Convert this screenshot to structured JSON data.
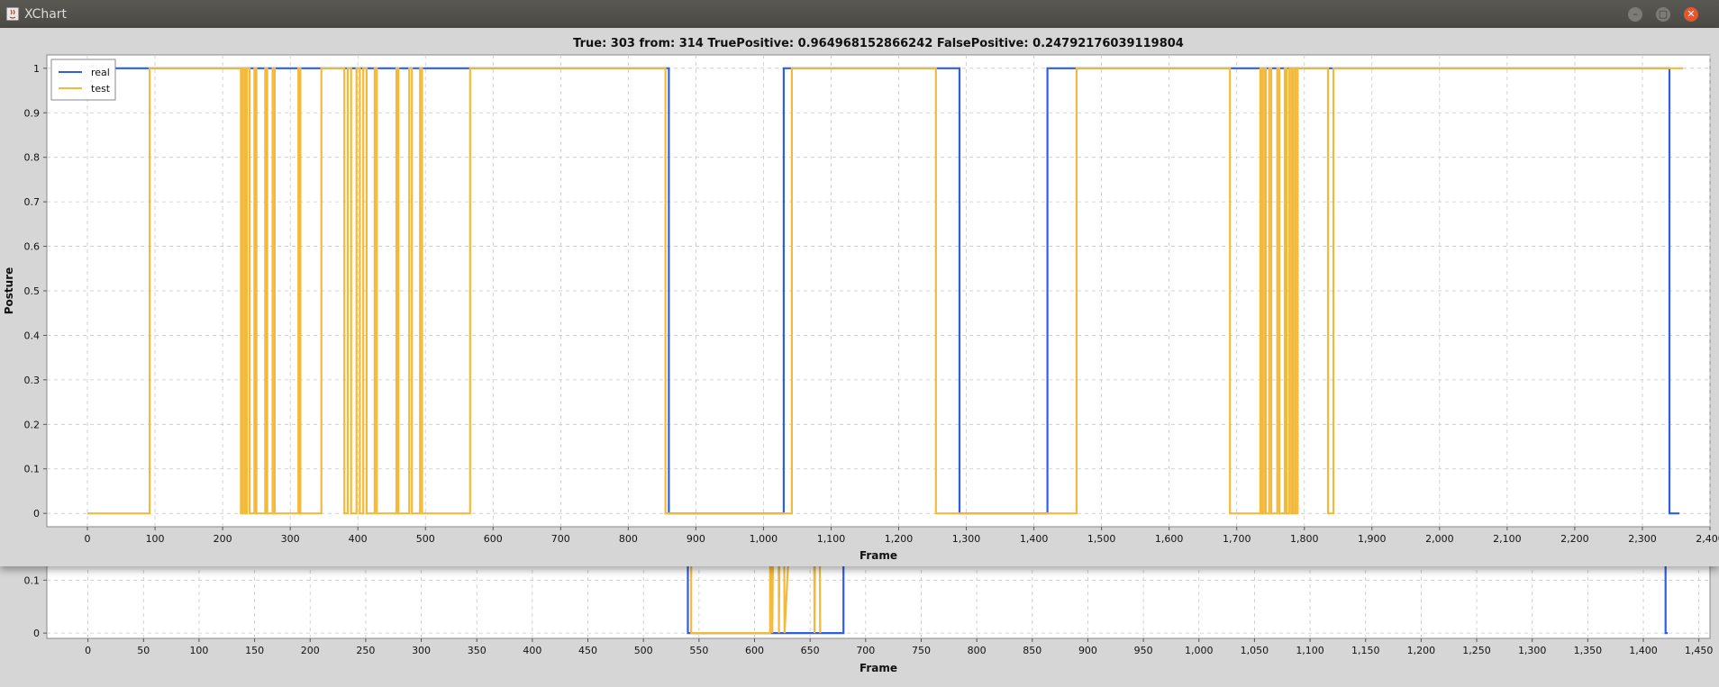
{
  "window": {
    "title": "XChart",
    "icon": "java-icon",
    "controls": [
      "minimize-icon",
      "maximize-icon",
      "close-icon"
    ]
  },
  "chart_data": [
    {
      "type": "line",
      "title": "True: 303 from: 314 TruePositive: 0.964968152866242 FalsePositive: 0.24792176039119804",
      "xlabel": "Frame",
      "ylabel": "Posture",
      "xlim": [
        -60,
        2400
      ],
      "ylim": [
        -0.03,
        1.03
      ],
      "x_ticks": [
        "0",
        "100",
        "200",
        "300",
        "400",
        "500",
        "600",
        "700",
        "800",
        "900",
        "1,000",
        "1,100",
        "1,200",
        "1,300",
        "1,400",
        "1,500",
        "1,600",
        "1,700",
        "1,800",
        "1,900",
        "2,000",
        "2,100",
        "2,200",
        "2,300",
        "2,400"
      ],
      "y_ticks": [
        "0",
        "0.1",
        "0.2",
        "0.3",
        "0.4",
        "0.5",
        "0.6",
        "0.7",
        "0.8",
        "0.9",
        "1"
      ],
      "grid": true,
      "legend_position": "top-left",
      "series": [
        {
          "name": "real",
          "color": "#2f5ee6",
          "segments": [
            [
              0,
              860,
              1
            ],
            [
              860,
              1030,
              0
            ],
            [
              1030,
              1290,
              1
            ],
            [
              1290,
              1420,
              0
            ],
            [
              1420,
              2340,
              1
            ],
            [
              2340,
              2355,
              0
            ]
          ]
        },
        {
          "name": "test",
          "color": "#f5b93a",
          "segments": [
            [
              0,
              92,
              0
            ],
            [
              92,
              227,
              1
            ],
            [
              227,
              230,
              0
            ],
            [
              230,
              233,
              1
            ],
            [
              233,
              236,
              0
            ],
            [
              236,
              240,
              1
            ],
            [
              240,
              247,
              0
            ],
            [
              247,
              250,
              1
            ],
            [
              250,
              263,
              0
            ],
            [
              263,
              266,
              1
            ],
            [
              266,
              274,
              0
            ],
            [
              274,
              277,
              1
            ],
            [
              277,
              312,
              0
            ],
            [
              312,
              315,
              1
            ],
            [
              315,
              346,
              0
            ],
            [
              346,
              380,
              1
            ],
            [
              380,
              385,
              0
            ],
            [
              385,
              390,
              1
            ],
            [
              390,
              398,
              0
            ],
            [
              398,
              403,
              1
            ],
            [
              403,
              408,
              0
            ],
            [
              408,
              413,
              1
            ],
            [
              413,
              425,
              0
            ],
            [
              425,
              428,
              1
            ],
            [
              428,
              457,
              0
            ],
            [
              457,
              460,
              1
            ],
            [
              460,
              476,
              0
            ],
            [
              476,
              480,
              1
            ],
            [
              480,
              492,
              0
            ],
            [
              492,
              495,
              1
            ],
            [
              495,
              566,
              0
            ],
            [
              566,
              855,
              1
            ],
            [
              855,
              1042,
              0
            ],
            [
              1042,
              1255,
              1
            ],
            [
              1255,
              1463,
              0
            ],
            [
              1463,
              1690,
              1
            ],
            [
              1690,
              1735,
              0
            ],
            [
              1735,
              1738,
              1
            ],
            [
              1738,
              1741,
              0
            ],
            [
              1741,
              1743,
              1
            ],
            [
              1743,
              1748,
              0
            ],
            [
              1748,
              1751,
              1
            ],
            [
              1751,
              1760,
              0
            ],
            [
              1760,
              1763,
              1
            ],
            [
              1763,
              1771,
              0
            ],
            [
              1771,
              1774,
              1
            ],
            [
              1774,
              1778,
              0
            ],
            [
              1778,
              1781,
              1
            ],
            [
              1781,
              1784,
              0
            ],
            [
              1784,
              1787,
              1
            ],
            [
              1787,
              1790,
              0
            ],
            [
              1790,
              1835,
              1
            ],
            [
              1835,
              1843,
              0
            ],
            [
              1843,
              2360,
              1
            ]
          ]
        }
      ]
    },
    {
      "type": "line",
      "title": "",
      "xlabel": "Frame",
      "ylabel": "",
      "xlim": [
        -37,
        1460
      ],
      "ylim": [
        -0.01,
        0.16
      ],
      "x_ticks": [
        "0",
        "50",
        "100",
        "150",
        "200",
        "250",
        "300",
        "350",
        "400",
        "450",
        "500",
        "550",
        "600",
        "650",
        "700",
        "750",
        "800",
        "850",
        "900",
        "950",
        "1,000",
        "1,050",
        "1,100",
        "1,150",
        "1,200",
        "1,250",
        "1,300",
        "1,350",
        "1,400",
        "1,450"
      ],
      "y_ticks": [
        "0",
        "0.1"
      ],
      "grid": true,
      "series": [
        {
          "name": "real",
          "color": "#2f5ee6",
          "segments": [
            [
              540,
              540,
              1
            ],
            [
              540,
              680,
              0
            ],
            [
              680,
              680,
              1
            ],
            [
              1420,
              1420,
              1
            ],
            [
              1420,
              1422,
              0
            ]
          ]
        },
        {
          "name": "test",
          "color": "#f5b93a",
          "segments": [
            [
              543,
              543,
              1
            ],
            [
              543,
              614,
              0
            ],
            [
              614,
              614,
              1
            ],
            [
              616,
              616,
              0
            ],
            [
              620,
              620,
              1
            ],
            [
              622,
              622,
              0
            ],
            [
              625,
              625,
              1
            ],
            [
              627,
              627,
              0
            ],
            [
              652,
              652,
              1
            ],
            [
              654,
              654,
              0
            ],
            [
              657,
              657,
              1
            ],
            [
              659,
              659,
              0
            ]
          ]
        }
      ]
    }
  ]
}
